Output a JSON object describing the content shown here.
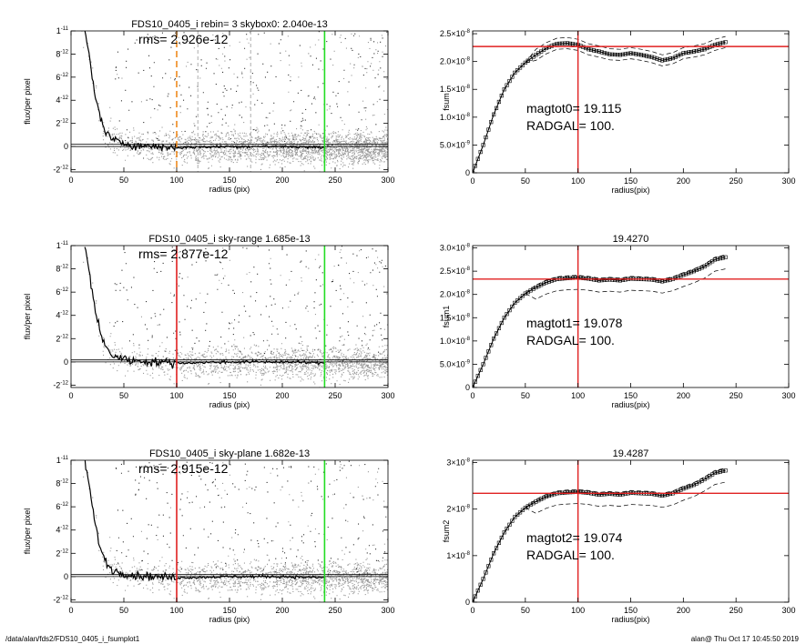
{
  "footer": {
    "path": "/data/alan/fds2/FDS10_0405_i_fsumplot1",
    "stamp": "alan@  Thu Oct 17 10:45:50 2019"
  },
  "colors": {
    "scatter": "#9a9a9a",
    "red": "#e02020",
    "green": "#22dd22",
    "orange": "#ef8a1e",
    "curve": "#000000"
  },
  "chart_data": [
    {
      "type": "scatter",
      "panel": "left-1",
      "title": "FDS10_0405_i rebin= 3    skybox0:  2.040e-13",
      "annotation": "rms= 2.926e-12",
      "xlabel": "radius (pix)",
      "ylabel": "flux/per pixel",
      "xlim": [
        0,
        300
      ],
      "ylim": [
        -2.2e-12,
        1e-11
      ],
      "xticks": [
        0,
        50,
        100,
        150,
        200,
        250,
        300
      ],
      "yticks": [
        {
          "v": -2e-12,
          "m": "-2",
          "e": "-12"
        },
        {
          "v": 0,
          "m": "0",
          "e": ""
        },
        {
          "v": 2e-12,
          "m": "2",
          "e": "-12"
        },
        {
          "v": 4e-12,
          "m": "4",
          "e": "-12"
        },
        {
          "v": 6e-12,
          "m": "6",
          "e": "-12"
        },
        {
          "v": 8e-12,
          "m": "8",
          "e": "-12"
        },
        {
          "v": 1e-11,
          "m": "1",
          "e": "-11"
        }
      ],
      "vlines": [
        {
          "x": 100,
          "color": "#ef8a1e",
          "style": "dashed"
        },
        {
          "x": 120,
          "color": "#999999",
          "style": "dashed"
        },
        {
          "x": 170,
          "color": "#999999",
          "style": "dashed"
        },
        {
          "x": 240,
          "color": "#22dd22",
          "style": "solid"
        }
      ],
      "hlines": [
        0,
        2e-13
      ],
      "profile": [
        [
          13,
          1e-11
        ],
        [
          17,
          8e-12
        ],
        [
          20,
          6e-12
        ],
        [
          25,
          3.5e-12
        ],
        [
          30,
          1.8e-12
        ],
        [
          35,
          1e-12
        ],
        [
          40,
          5e-13
        ],
        [
          50,
          3e-13
        ],
        [
          60,
          1e-13
        ],
        [
          80,
          0
        ],
        [
          100,
          -1e-13
        ],
        [
          150,
          0
        ],
        [
          200,
          0
        ],
        [
          240,
          -1e-13
        ]
      ]
    },
    {
      "type": "line",
      "panel": "right-1",
      "title": "",
      "xlabel": "radius(pix)",
      "ylabel": "fsum",
      "xlim": [
        0,
        300
      ],
      "ylim": [
        0,
        2.55e-08
      ],
      "xticks": [
        0,
        50,
        100,
        150,
        200,
        250,
        300
      ],
      "yticks": [
        {
          "v": 0,
          "m": "0",
          "e": ""
        },
        {
          "v": 5e-09,
          "m": "5.0×10",
          "e": "-9"
        },
        {
          "v": 1e-08,
          "m": "1.0×10",
          "e": "-8"
        },
        {
          "v": 1.5e-08,
          "m": "1.5×10",
          "e": "-8"
        },
        {
          "v": 2e-08,
          "m": "2.0×10",
          "e": "-8"
        },
        {
          "v": 2.5e-08,
          "m": "2.5×10",
          "e": "-8"
        }
      ],
      "hline": 2.27e-08,
      "vline": 100,
      "text": [
        "magtot0=  19.115",
        "RADGAL=    100."
      ],
      "x": [
        0,
        10,
        20,
        30,
        40,
        50,
        60,
        70,
        80,
        90,
        100,
        110,
        120,
        130,
        140,
        150,
        160,
        170,
        180,
        190,
        200,
        210,
        220,
        230,
        240
      ],
      "y": [
        0,
        5e-09,
        1.05e-08,
        1.5e-08,
        1.8e-08,
        1.98e-08,
        2.12e-08,
        2.24e-08,
        2.32e-08,
        2.33e-08,
        2.3e-08,
        2.22e-08,
        2.18e-08,
        2.13e-08,
        2.12e-08,
        2.15e-08,
        2.12e-08,
        2.08e-08,
        2.02e-08,
        2.06e-08,
        2.15e-08,
        2.18e-08,
        2.22e-08,
        2.3e-08,
        2.35e-08
      ],
      "upper_offset": 1e-09,
      "lower_offset": 1e-09
    },
    {
      "type": "scatter",
      "panel": "left-2",
      "title": "FDS10_0405_i sky-range  1.685e-13",
      "annotation": "rms= 2.877e-12",
      "xlabel": "radius (pix)",
      "ylabel": "flux/per pixel",
      "xlim": [
        0,
        300
      ],
      "ylim": [
        -2.2e-12,
        1e-11
      ],
      "xticks": [
        0,
        50,
        100,
        150,
        200,
        250,
        300
      ],
      "yticks": [
        {
          "v": -2e-12,
          "m": "-2",
          "e": "-12"
        },
        {
          "v": 0,
          "m": "0",
          "e": ""
        },
        {
          "v": 2e-12,
          "m": "2",
          "e": "-12"
        },
        {
          "v": 4e-12,
          "m": "4",
          "e": "-12"
        },
        {
          "v": 6e-12,
          "m": "6",
          "e": "-12"
        },
        {
          "v": 8e-12,
          "m": "8",
          "e": "-12"
        },
        {
          "v": 1e-11,
          "m": "1",
          "e": "-11"
        }
      ],
      "vlines": [
        {
          "x": 100,
          "color": "#e02020",
          "style": "solid"
        },
        {
          "x": 240,
          "color": "#22dd22",
          "style": "solid"
        }
      ],
      "hlines": [
        0,
        1.7e-13
      ],
      "profile": [
        [
          13,
          1e-11
        ],
        [
          17,
          8e-12
        ],
        [
          20,
          6e-12
        ],
        [
          25,
          3.5e-12
        ],
        [
          30,
          1.8e-12
        ],
        [
          35,
          1e-12
        ],
        [
          40,
          5e-13
        ],
        [
          50,
          3e-13
        ],
        [
          60,
          1e-13
        ],
        [
          80,
          0
        ],
        [
          100,
          -1e-13
        ],
        [
          150,
          0
        ],
        [
          200,
          0
        ],
        [
          240,
          -1e-13
        ]
      ]
    },
    {
      "type": "line",
      "panel": "right-2",
      "title": "19.4270",
      "xlabel": "radius(pix)",
      "ylabel": "fsum1",
      "xlim": [
        0,
        300
      ],
      "ylim": [
        0,
        3.05e-08
      ],
      "xticks": [
        0,
        50,
        100,
        150,
        200,
        250,
        300
      ],
      "yticks": [
        {
          "v": 0,
          "m": "0",
          "e": ""
        },
        {
          "v": 5e-09,
          "m": "5.0×10",
          "e": "-9"
        },
        {
          "v": 1e-08,
          "m": "1.0×10",
          "e": "-8"
        },
        {
          "v": 1.5e-08,
          "m": "1.5×10",
          "e": "-8"
        },
        {
          "v": 2e-08,
          "m": "2.0×10",
          "e": "-8"
        },
        {
          "v": 2.5e-08,
          "m": "2.5×10",
          "e": "-8"
        },
        {
          "v": 3e-08,
          "m": "3.0×10",
          "e": "-8"
        }
      ],
      "hline": 2.33e-08,
      "vline": 100,
      "text": [
        "magtot1=  19.078",
        "RADGAL=    100."
      ],
      "x": [
        0,
        10,
        20,
        30,
        40,
        50,
        60,
        70,
        80,
        90,
        100,
        110,
        120,
        130,
        140,
        150,
        160,
        170,
        180,
        190,
        200,
        210,
        220,
        230,
        240
      ],
      "y": [
        0,
        5e-09,
        1.05e-08,
        1.5e-08,
        1.82e-08,
        2.02e-08,
        2.15e-08,
        2.26e-08,
        2.33e-08,
        2.35e-08,
        2.36e-08,
        2.34e-08,
        2.3e-08,
        2.32e-08,
        2.3e-08,
        2.34e-08,
        2.33e-08,
        2.32e-08,
        2.28e-08,
        2.33e-08,
        2.42e-08,
        2.5e-08,
        2.6e-08,
        2.75e-08,
        2.8e-08
      ],
      "upper_offset": 5e-10,
      "lower_offset": 2.5e-09
    },
    {
      "type": "scatter",
      "panel": "left-3",
      "title": "FDS10_0405_i sky-plane  1.682e-13",
      "annotation": "rms= 2.915e-12",
      "xlabel": "radius (pix)",
      "ylabel": "flux/per pixel",
      "xlim": [
        0,
        300
      ],
      "ylim": [
        -2.2e-12,
        1e-11
      ],
      "xticks": [
        0,
        50,
        100,
        150,
        200,
        250,
        300
      ],
      "yticks": [
        {
          "v": -2e-12,
          "m": "-2",
          "e": "-12"
        },
        {
          "v": 0,
          "m": "0",
          "e": ""
        },
        {
          "v": 2e-12,
          "m": "2",
          "e": "-12"
        },
        {
          "v": 4e-12,
          "m": "4",
          "e": "-12"
        },
        {
          "v": 6e-12,
          "m": "6",
          "e": "-12"
        },
        {
          "v": 8e-12,
          "m": "8",
          "e": "-12"
        },
        {
          "v": 1e-11,
          "m": "1",
          "e": "-11"
        }
      ],
      "vlines": [
        {
          "x": 100,
          "color": "#e02020",
          "style": "solid"
        },
        {
          "x": 240,
          "color": "#22dd22",
          "style": "solid"
        }
      ],
      "hlines": [
        0,
        1.7e-13
      ],
      "profile": [
        [
          13,
          1e-11
        ],
        [
          17,
          8e-12
        ],
        [
          20,
          6e-12
        ],
        [
          25,
          3.5e-12
        ],
        [
          30,
          1.8e-12
        ],
        [
          35,
          1e-12
        ],
        [
          40,
          5e-13
        ],
        [
          50,
          3e-13
        ],
        [
          60,
          1e-13
        ],
        [
          80,
          0
        ],
        [
          100,
          -1e-13
        ],
        [
          150,
          0
        ],
        [
          200,
          0
        ],
        [
          240,
          -1e-13
        ]
      ]
    },
    {
      "type": "line",
      "panel": "right-3",
      "title": "19.4287",
      "xlabel": "radius(pix)",
      "ylabel": "fsum2",
      "xlim": [
        0,
        300
      ],
      "ylim": [
        0,
        3.05e-08
      ],
      "xticks": [
        0,
        50,
        100,
        150,
        200,
        250,
        300
      ],
      "yticks": [
        {
          "v": 0,
          "m": "0",
          "e": ""
        },
        {
          "v": 1e-08,
          "m": "1×10",
          "e": "-8"
        },
        {
          "v": 2e-08,
          "m": "2×10",
          "e": "-8"
        },
        {
          "v": 3e-08,
          "m": "3×10",
          "e": "-8"
        }
      ],
      "hline": 2.34e-08,
      "vline": 100,
      "text": [
        "magtot2=  19.074",
        "RADGAL=    100."
      ],
      "x": [
        0,
        10,
        20,
        30,
        40,
        50,
        60,
        70,
        80,
        90,
        100,
        110,
        120,
        130,
        140,
        150,
        160,
        170,
        180,
        190,
        200,
        210,
        220,
        230,
        240
      ],
      "y": [
        0,
        5e-09,
        1.05e-08,
        1.5e-08,
        1.83e-08,
        2.03e-08,
        2.16e-08,
        2.27e-08,
        2.34e-08,
        2.36e-08,
        2.37e-08,
        2.35e-08,
        2.31e-08,
        2.33e-08,
        2.31e-08,
        2.35e-08,
        2.34e-08,
        2.33e-08,
        2.29e-08,
        2.34e-08,
        2.44e-08,
        2.52e-08,
        2.64e-08,
        2.78e-08,
        2.83e-08
      ],
      "upper_offset": 5e-10,
      "lower_offset": 2.5e-09
    }
  ]
}
